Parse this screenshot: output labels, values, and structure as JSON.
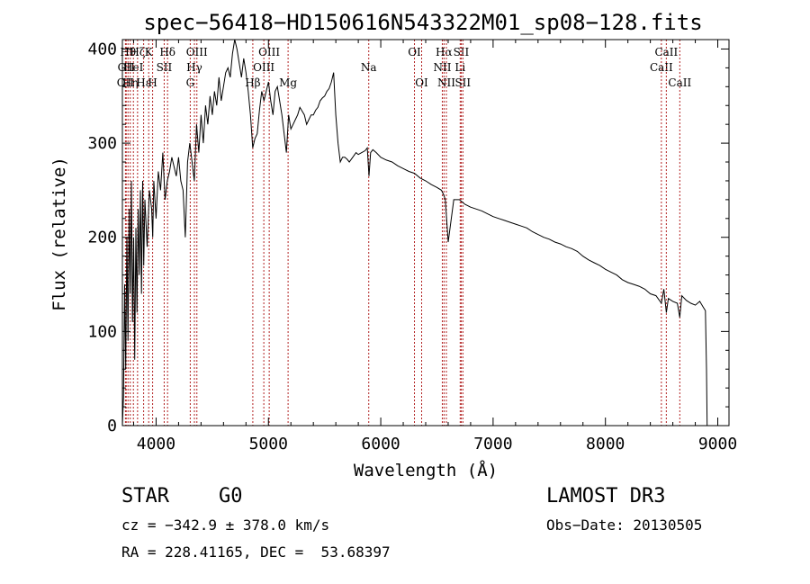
{
  "chart_data": {
    "type": "line",
    "title": "spec−56418−HD150616N543322M01_sp08−128.fits",
    "xlabel": "Wavelength (Å)",
    "ylabel": "Flux (relative)",
    "xlim": [
      3700,
      9100
    ],
    "ylim": [
      0,
      410
    ],
    "xticks": [
      4000,
      5000,
      6000,
      7000,
      8000,
      9000
    ],
    "yticks": [
      0,
      100,
      200,
      300,
      400
    ],
    "line_color": "#000000",
    "marker_color": "#b22222",
    "series": [
      {
        "x": [
          3700,
          3710,
          3720,
          3730,
          3740,
          3750,
          3760,
          3770,
          3780,
          3790,
          3800,
          3810,
          3820,
          3830,
          3840,
          3850,
          3860,
          3870,
          3880,
          3890,
          3900,
          3920,
          3940,
          3960,
          3970,
          3980,
          4000,
          4020,
          4040,
          4060,
          4080,
          4100,
          4120,
          4140,
          4160,
          4180,
          4200,
          4220,
          4240,
          4260,
          4280,
          4300,
          4320,
          4340,
          4360,
          4380,
          4400,
          4420,
          4440,
          4460,
          4480,
          4500,
          4520,
          4540,
          4560,
          4580,
          4600,
          4620,
          4640,
          4660,
          4680,
          4700,
          4720,
          4740,
          4760,
          4780,
          4800,
          4820,
          4840,
          4860,
          4880,
          4900,
          4920,
          4940,
          4960,
          4980,
          5000,
          5020,
          5040,
          5060,
          5080,
          5100,
          5120,
          5140,
          5160,
          5180,
          5200,
          5220,
          5240,
          5260,
          5280,
          5300,
          5320,
          5340,
          5360,
          5380,
          5400,
          5420,
          5440,
          5460,
          5480,
          5500,
          5520,
          5540,
          5560,
          5580,
          5600,
          5620,
          5640,
          5660,
          5680,
          5700,
          5720,
          5750,
          5780,
          5800,
          5830,
          5860,
          5880,
          5895,
          5910,
          5930,
          5960,
          6000,
          6050,
          6100,
          6150,
          6200,
          6250,
          6300,
          6350,
          6400,
          6450,
          6500,
          6540,
          6560,
          6575,
          6600,
          6650,
          6700,
          6750,
          6800,
          6850,
          6900,
          6950,
          7000,
          7050,
          7100,
          7150,
          7200,
          7250,
          7300,
          7350,
          7400,
          7450,
          7500,
          7550,
          7600,
          7650,
          7700,
          7750,
          7800,
          7850,
          7900,
          7950,
          8000,
          8050,
          8100,
          8150,
          8200,
          8250,
          8300,
          8350,
          8400,
          8450,
          8498,
          8520,
          8542,
          8560,
          8600,
          8640,
          8662,
          8680,
          8720,
          8760,
          8800,
          8840,
          8870,
          8890,
          8900,
          8905
        ],
        "y": [
          0,
          30,
          150,
          60,
          200,
          90,
          230,
          140,
          260,
          110,
          200,
          70,
          210,
          120,
          230,
          160,
          250,
          140,
          260,
          170,
          240,
          190,
          250,
          230,
          200,
          260,
          220,
          270,
          250,
          290,
          240,
          260,
          270,
          285,
          275,
          265,
          285,
          260,
          250,
          200,
          280,
          300,
          280,
          260,
          320,
          290,
          330,
          300,
          340,
          320,
          350,
          330,
          355,
          340,
          370,
          345,
          360,
          375,
          380,
          370,
          395,
          410,
          400,
          385,
          370,
          390,
          375,
          355,
          330,
          295,
          305,
          310,
          335,
          355,
          345,
          355,
          365,
          345,
          330,
          355,
          360,
          345,
          330,
          310,
          290,
          330,
          315,
          320,
          325,
          330,
          338,
          334,
          330,
          320,
          325,
          330,
          330,
          335,
          338,
          345,
          348,
          350,
          355,
          358,
          365,
          375,
          330,
          300,
          280,
          285,
          285,
          283,
          280,
          285,
          290,
          288,
          290,
          292,
          295,
          265,
          290,
          293,
          290,
          285,
          282,
          280,
          276,
          273,
          270,
          268,
          263,
          260,
          256,
          253,
          250,
          245,
          240,
          195,
          240,
          240,
          235,
          232,
          230,
          228,
          225,
          222,
          220,
          218,
          216,
          214,
          212,
          210,
          206,
          203,
          200,
          198,
          195,
          193,
          190,
          188,
          185,
          180,
          176,
          173,
          170,
          166,
          163,
          160,
          155,
          152,
          150,
          148,
          145,
          140,
          138,
          130,
          145,
          120,
          135,
          132,
          130,
          115,
          138,
          133,
          130,
          128,
          132,
          126,
          122,
          60,
          0
        ]
      }
    ],
    "line_markers": [
      {
        "wavelength": 3727,
        "label": "OII",
        "row": 3
      },
      {
        "wavelength": 3734,
        "label": "OII",
        "row": 2
      },
      {
        "wavelength": 3750,
        "label": "Hθ",
        "row": 1
      },
      {
        "wavelength": 3770,
        "label": "Hη",
        "row": 3
      },
      {
        "wavelength": 3798,
        "label": "HeI",
        "row": 2
      },
      {
        "wavelength": 3835,
        "label": "Hζ",
        "row": 1
      },
      {
        "wavelength": 3889,
        "label": "Hε",
        "row": 3
      },
      {
        "wavelength": 3934,
        "label": "K",
        "row": 1
      },
      {
        "wavelength": 3969,
        "label": "H",
        "row": 3
      },
      {
        "wavelength": 4072,
        "label": "SII",
        "row": 2
      },
      {
        "wavelength": 4102,
        "label": "Hδ",
        "row": 1
      },
      {
        "wavelength": 4304,
        "label": "G",
        "row": 3
      },
      {
        "wavelength": 4341,
        "label": "Hγ",
        "row": 2
      },
      {
        "wavelength": 4363,
        "label": "OIII",
        "row": 1
      },
      {
        "wavelength": 4861,
        "label": "Hβ",
        "row": 3
      },
      {
        "wavelength": 4959,
        "label": "OIII",
        "row": 2
      },
      {
        "wavelength": 5007,
        "label": "OIII",
        "row": 1
      },
      {
        "wavelength": 5175,
        "label": "Mg",
        "row": 3
      },
      {
        "wavelength": 5893,
        "label": "Na",
        "row": 2
      },
      {
        "wavelength": 6300,
        "label": "OI",
        "row": 1
      },
      {
        "wavelength": 6364,
        "label": "OI",
        "row": 3
      },
      {
        "wavelength": 6548,
        "label": "NII",
        "row": 2
      },
      {
        "wavelength": 6563,
        "label": "Hα",
        "row": 1
      },
      {
        "wavelength": 6584,
        "label": "NII",
        "row": 3
      },
      {
        "wavelength": 6707,
        "label": "Li",
        "row": 2
      },
      {
        "wavelength": 6716,
        "label": "SII",
        "row": 1
      },
      {
        "wavelength": 6731,
        "label": "SII",
        "row": 3
      },
      {
        "wavelength": 8498,
        "label": "CaII",
        "row": 2
      },
      {
        "wavelength": 8542,
        "label": "CaII",
        "row": 1
      },
      {
        "wavelength": 8662,
        "label": "CaII",
        "row": 3
      }
    ]
  },
  "info": {
    "object_class": "STAR",
    "subclass": "G0",
    "survey": "LAMOST DR3",
    "cz": "cz = −342.9 ± 378.0 km/s",
    "obs_date": "Obs−Date: 20130505",
    "coords": "RA = 228.41165, DEC =  53.68397"
  }
}
